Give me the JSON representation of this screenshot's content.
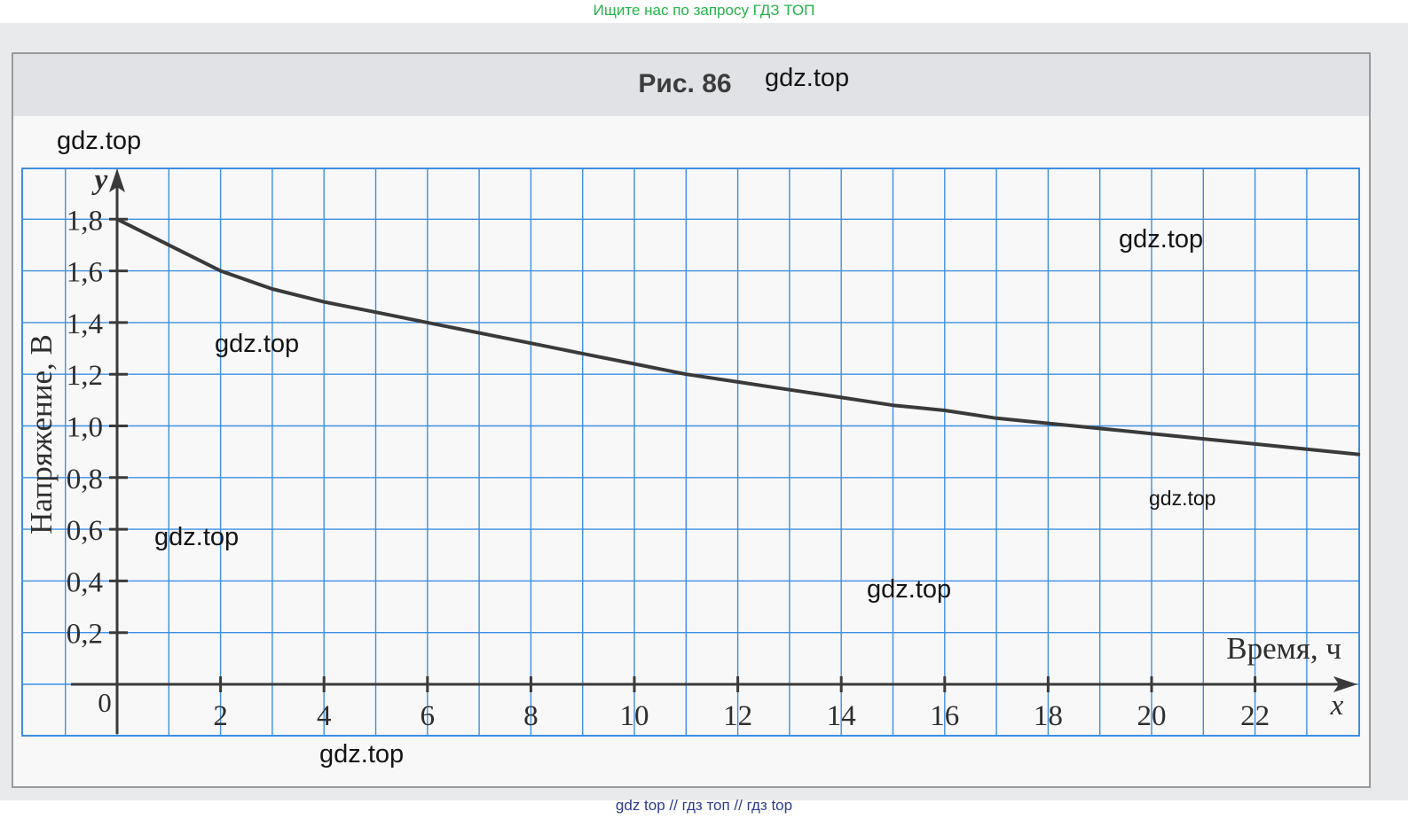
{
  "header": {
    "banner_text": "Ищите нас по запросу ГДЗ ТОП"
  },
  "footer": {
    "text": "gdz top  //  гдз топ  //  гдз top"
  },
  "watermarks": [
    "gdz.top",
    "gdz.top",
    "gdz.top",
    "gdz.top",
    "gdz.top",
    "gdz.top",
    "gdz.top",
    "gdz.top"
  ],
  "chart_data": {
    "type": "line",
    "title": "Рис. 86",
    "xlabel": "Время, ч",
    "ylabel": "Напряжение, В",
    "x_axis_letter": "x",
    "y_axis_letter": "y",
    "origin_label": "0",
    "xlim": [
      0,
      24
    ],
    "ylim": [
      -0.2,
      2.0
    ],
    "x_ticks": [
      2,
      4,
      6,
      8,
      10,
      12,
      14,
      16,
      18,
      20,
      22
    ],
    "x_tick_labels": [
      "2",
      "4",
      "6",
      "8",
      "10",
      "12",
      "14",
      "16",
      "18",
      "20",
      "22"
    ],
    "y_ticks": [
      0.2,
      0.4,
      0.6,
      0.8,
      1.0,
      1.2,
      1.4,
      1.6,
      1.8
    ],
    "y_tick_labels": [
      "0,2",
      "0,4",
      "0,6",
      "0,8",
      "1,0",
      "1,2",
      "1,4",
      "1,6",
      "1,8"
    ],
    "grid": true,
    "series": [
      {
        "x": [
          0,
          1,
          2,
          3,
          4,
          5,
          6,
          7,
          8,
          9,
          10,
          11,
          12,
          13,
          14,
          15,
          16,
          17,
          18,
          19,
          20,
          21,
          22,
          23,
          24
        ],
        "y": [
          1.8,
          1.7,
          1.6,
          1.53,
          1.48,
          1.44,
          1.4,
          1.36,
          1.32,
          1.28,
          1.24,
          1.2,
          1.17,
          1.14,
          1.11,
          1.08,
          1.06,
          1.03,
          1.01,
          0.99,
          0.97,
          0.95,
          0.93,
          0.91,
          0.89
        ]
      }
    ],
    "colors": {
      "grid": "#3d8fe0",
      "curve": "#3a3a3a",
      "axes": "#3a3a3a"
    }
  }
}
